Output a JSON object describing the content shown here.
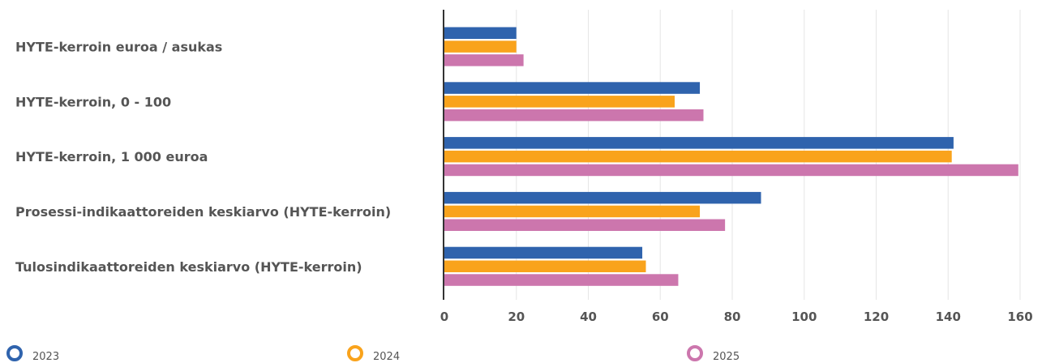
{
  "chart_data": {
    "type": "bar",
    "orientation": "horizontal",
    "categories": [
      "HYTE-kerroin euroa / asukas",
      "HYTE-kerroin, 0 - 100",
      "HYTE-kerroin, 1 000 euroa",
      "Prosessi-indikaattoreiden keskiarvo (HYTE-kerroin)",
      "Tulosindikaattoreiden keskiarvo (HYTE-kerroin)"
    ],
    "series": [
      {
        "name": "2023",
        "color": "#2f63ad",
        "values": [
          20,
          71,
          141.5,
          88,
          55
        ]
      },
      {
        "name": "2024",
        "color": "#f9a31c",
        "values": [
          20,
          64,
          141,
          71,
          56
        ]
      },
      {
        "name": "2025",
        "color": "#cc76ad",
        "values": [
          22,
          72,
          159.5,
          78,
          65
        ]
      }
    ],
    "x_ticks": [
      "0",
      "20",
      "40",
      "60",
      "80",
      "100",
      "120",
      "140",
      "160"
    ],
    "xlim": [
      0,
      160
    ],
    "grid": true,
    "legend_position": "bottom"
  }
}
